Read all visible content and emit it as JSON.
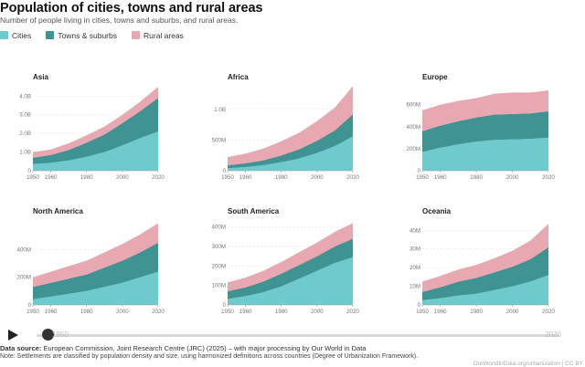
{
  "header": {
    "title": "Population of cities, towns and rural areas",
    "subtitle": "Number of people living in cities, towns and suburbs, and rural areas."
  },
  "legend": [
    {
      "label": "Cities",
      "color": "#6ecacc"
    },
    {
      "label": "Towns & suburbs",
      "color": "#3f9393"
    },
    {
      "label": "Rural areas",
      "color": "#e8a8b1"
    }
  ],
  "timeline": {
    "start_label": "1950",
    "end_label": "2020",
    "play_icon": "play-icon"
  },
  "footer": {
    "source_label": "Data source:",
    "source_text": "European Commission, Joint Research Centre (JRC) (2025) – with major processing by Our World in Data",
    "note": "Note: Settlements are classified by population density and size, using harmonized definitions across countries (Degree of Urbanization Framework).",
    "credit": "OurWorldInData.org/urbanization | CC BY"
  },
  "chart_data": [
    {
      "type": "area",
      "stacked": true,
      "title": "Asia",
      "x": [
        1950,
        1960,
        1970,
        1980,
        1990,
        2000,
        2010,
        2020
      ],
      "xticks": [
        1950,
        1960,
        1980,
        2000,
        2020
      ],
      "ylim": [
        0,
        4600000000
      ],
      "yticks": [
        {
          "v": 1000000000,
          "l": "1.0B"
        },
        {
          "v": 2000000000,
          "l": "2.0B"
        },
        {
          "v": 3000000000,
          "l": "3.0B"
        },
        {
          "v": 4000000000,
          "l": "4.0B"
        }
      ],
      "series": [
        {
          "name": "Cities",
          "values": [
            350000000,
            420000000,
            550000000,
            750000000,
            1000000000,
            1350000000,
            1750000000,
            2100000000
          ]
        },
        {
          "name": "Towns & suburbs",
          "values": [
            350000000,
            420000000,
            560000000,
            750000000,
            950000000,
            1200000000,
            1450000000,
            1800000000
          ]
        },
        {
          "name": "Rural areas",
          "values": [
            300000000,
            300000000,
            360000000,
            400000000,
            420000000,
            450000000,
            500000000,
            600000000
          ]
        }
      ]
    },
    {
      "type": "area",
      "stacked": true,
      "title": "Africa",
      "x": [
        1950,
        1960,
        1970,
        1980,
        1990,
        2000,
        2010,
        2020
      ],
      "xticks": [
        1950,
        1960,
        1980,
        2000,
        2020
      ],
      "ylim": [
        0,
        1400000000
      ],
      "yticks": [
        {
          "v": 500000000,
          "l": "500M"
        },
        {
          "v": 1000000000,
          "l": "1.0B"
        }
      ],
      "series": [
        {
          "name": "Cities",
          "values": [
            40000000,
            60000000,
            90000000,
            140000000,
            200000000,
            290000000,
            400000000,
            560000000
          ]
        },
        {
          "name": "Towns & suburbs",
          "values": [
            50000000,
            60000000,
            80000000,
            110000000,
            150000000,
            200000000,
            260000000,
            360000000
          ]
        },
        {
          "name": "Rural areas",
          "values": [
            130000000,
            160000000,
            190000000,
            230000000,
            270000000,
            320000000,
            370000000,
            460000000
          ]
        }
      ]
    },
    {
      "type": "area",
      "stacked": true,
      "title": "Europe",
      "x": [
        1950,
        1960,
        1970,
        1980,
        1990,
        2000,
        2010,
        2020
      ],
      "xticks": [
        1950,
        1960,
        1980,
        2000,
        2020
      ],
      "ylim": [
        0,
        780000000
      ],
      "yticks": [
        {
          "v": 200000000,
          "l": "200M"
        },
        {
          "v": 400000000,
          "l": "400M"
        },
        {
          "v": 600000000,
          "l": "600M"
        }
      ],
      "series": [
        {
          "name": "Cities",
          "values": [
            170000000,
            210000000,
            240000000,
            265000000,
            280000000,
            285000000,
            290000000,
            300000000
          ]
        },
        {
          "name": "Towns & suburbs",
          "values": [
            190000000,
            200000000,
            210000000,
            220000000,
            230000000,
            230000000,
            230000000,
            240000000
          ]
        },
        {
          "name": "Rural areas",
          "values": [
            190000000,
            190000000,
            185000000,
            175000000,
            190000000,
            195000000,
            190000000,
            190000000
          ]
        }
      ]
    },
    {
      "type": "area",
      "stacked": true,
      "title": "North America",
      "x": [
        1950,
        1960,
        1970,
        1980,
        1990,
        2000,
        2010,
        2020
      ],
      "xticks": [
        1950,
        1960,
        1980,
        2000,
        2020
      ],
      "ylim": [
        0,
        620000000
      ],
      "yticks": [
        {
          "v": 200000000,
          "l": "200M"
        },
        {
          "v": 400000000,
          "l": "400M"
        }
      ],
      "series": [
        {
          "name": "Cities",
          "values": [
            40000000,
            60000000,
            80000000,
            100000000,
            130000000,
            160000000,
            200000000,
            240000000
          ]
        },
        {
          "name": "Towns & suburbs",
          "values": [
            90000000,
            100000000,
            110000000,
            120000000,
            140000000,
            160000000,
            180000000,
            210000000
          ]
        },
        {
          "name": "Rural areas",
          "values": [
            70000000,
            80000000,
            90000000,
            100000000,
            110000000,
            120000000,
            130000000,
            140000000
          ]
        }
      ]
    },
    {
      "type": "area",
      "stacked": true,
      "title": "South America",
      "x": [
        1950,
        1960,
        1970,
        1980,
        1990,
        2000,
        2010,
        2020
      ],
      "xticks": [
        1950,
        1960,
        1980,
        2000,
        2020
      ],
      "ylim": [
        0,
        440000000
      ],
      "yticks": [
        {
          "v": 100000000,
          "l": "100M"
        },
        {
          "v": 200000000,
          "l": "200M"
        },
        {
          "v": 300000000,
          "l": "300M"
        },
        {
          "v": 400000000,
          "l": "400M"
        }
      ],
      "series": [
        {
          "name": "Cities",
          "values": [
            30000000,
            45000000,
            65000000,
            95000000,
            135000000,
            175000000,
            215000000,
            245000000
          ]
        },
        {
          "name": "Towns & suburbs",
          "values": [
            40000000,
            45000000,
            55000000,
            65000000,
            70000000,
            75000000,
            85000000,
            95000000
          ]
        },
        {
          "name": "Rural areas",
          "values": [
            45000000,
            50000000,
            55000000,
            60000000,
            65000000,
            70000000,
            75000000,
            80000000
          ]
        }
      ]
    },
    {
      "type": "area",
      "stacked": true,
      "title": "Oceania",
      "x": [
        1950,
        1960,
        1970,
        1980,
        1990,
        2000,
        2010,
        2020
      ],
      "xticks": [
        1950,
        1960,
        1980,
        2000,
        2020
      ],
      "ylim": [
        0,
        46000000
      ],
      "yticks": [
        {
          "v": 10000000,
          "l": "10M"
        },
        {
          "v": 20000000,
          "l": "20M"
        },
        {
          "v": 30000000,
          "l": "30M"
        },
        {
          "v": 40000000,
          "l": "40M"
        }
      ],
      "series": [
        {
          "name": "Cities",
          "values": [
            2500000,
            3500000,
            5000000,
            6000000,
            8000000,
            10000000,
            12500000,
            16000000
          ]
        },
        {
          "name": "Towns & suburbs",
          "values": [
            4500000,
            6000000,
            7500000,
            8500000,
            9500000,
            10500000,
            12000000,
            15000000
          ]
        },
        {
          "name": "Rural areas",
          "values": [
            5500000,
            6000000,
            6500000,
            7000000,
            7500000,
            8500000,
            10000000,
            12500000
          ]
        }
      ]
    }
  ]
}
